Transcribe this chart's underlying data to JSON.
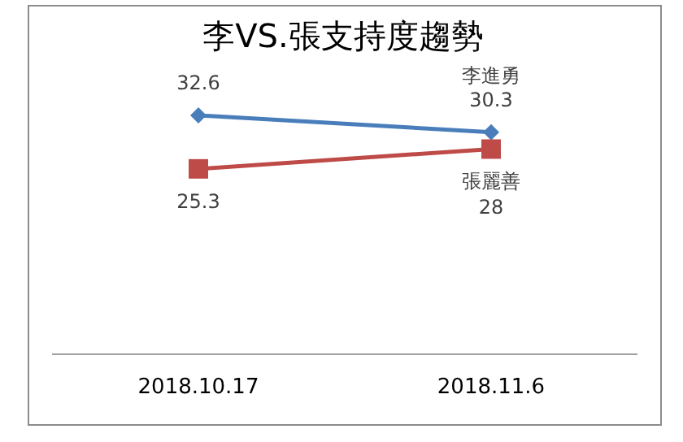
{
  "chart_data": {
    "type": "line",
    "title": "李VS.張支持度趨勢",
    "categories": [
      "2018.10.17",
      "2018.11.6"
    ],
    "series": [
      {
        "name": "李進勇",
        "color": "#4a7ebb",
        "marker": "diamond",
        "values": [
          32.6,
          30.3
        ]
      },
      {
        "name": "張麗善",
        "color": "#be4b48",
        "marker": "square",
        "values": [
          25.3,
          28
        ]
      }
    ],
    "tick_labels": "x",
    "data_labels": true
  }
}
